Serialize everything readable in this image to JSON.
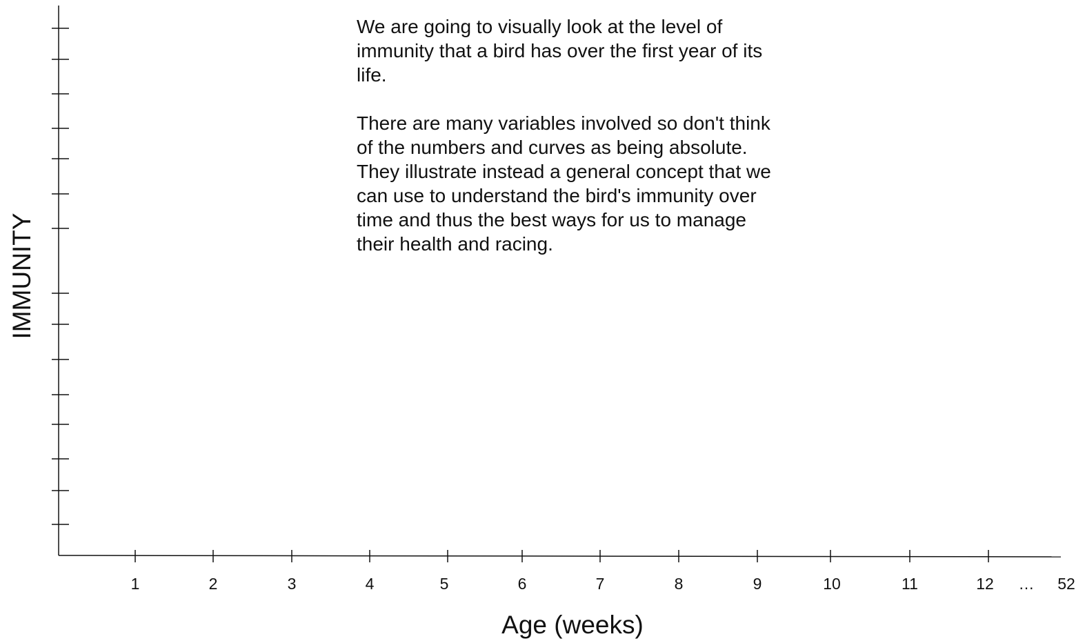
{
  "text_block": {
    "paragraphs": [
      {
        "lines": [
          "We are going to visually look at the level of",
          "immunity that a bird has over the first year of its",
          "life."
        ]
      },
      {
        "lines": [
          "There are many variables involved so don't think",
          "of the numbers and curves as being absolute.",
          "They illustrate instead a general concept that we",
          "can use to understand the bird's immunity over",
          "time and thus the best ways for us to manage",
          "their health and racing."
        ]
      }
    ]
  },
  "y_axis": {
    "label": "IMMUNITY"
  },
  "x_axis": {
    "label": "Age (weeks)",
    "tick_labels": [
      "1",
      "2",
      "3",
      "4",
      "5",
      "6",
      "7",
      "8",
      "9",
      "10",
      "11",
      "12",
      "…",
      "52"
    ]
  }
}
